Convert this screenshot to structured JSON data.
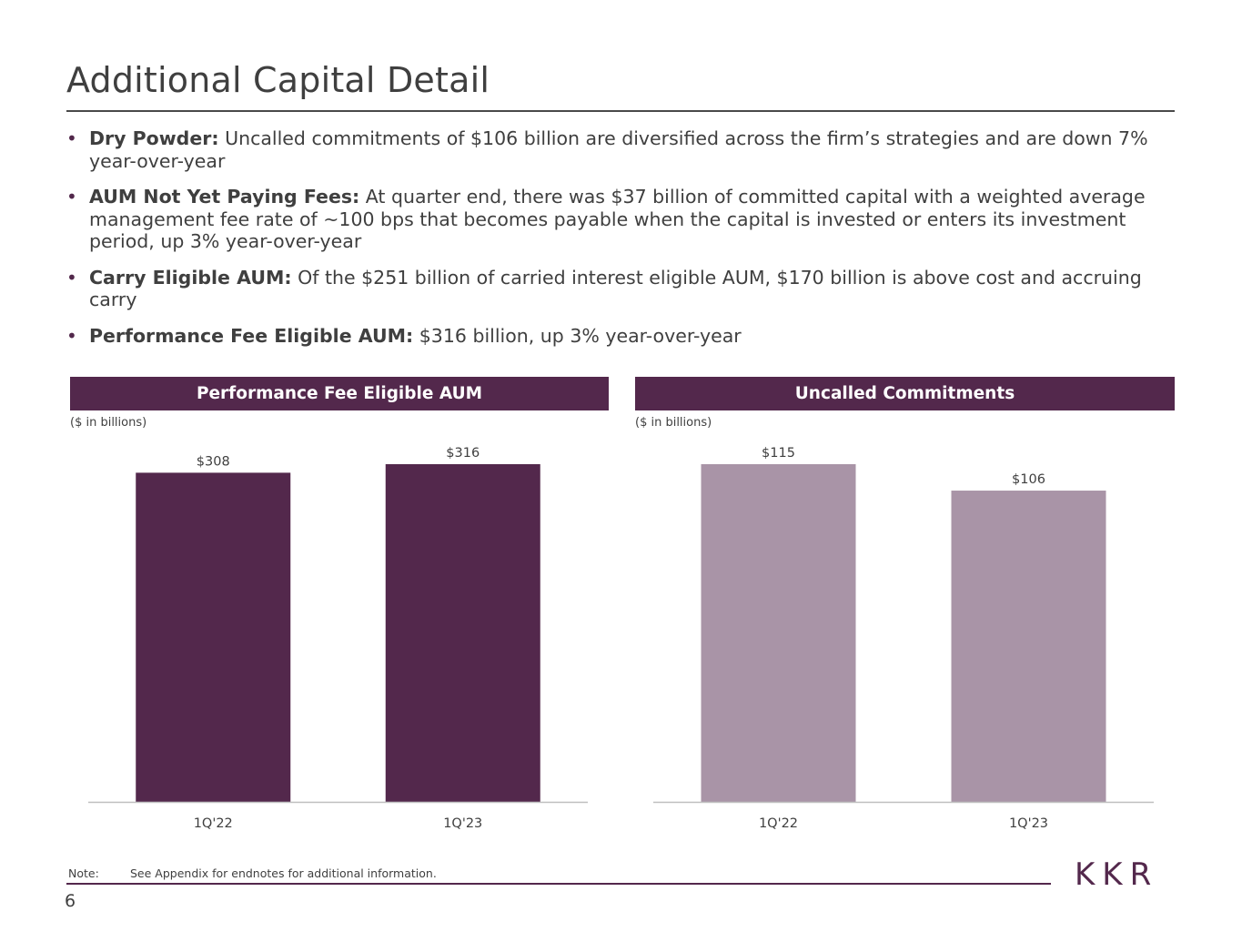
{
  "page": {
    "title": "Additional Capital Detail",
    "page_number": "6",
    "logo_text": "KKR",
    "note_label": "Note:",
    "note_text": "See Appendix for endnotes for additional information."
  },
  "bullets": [
    {
      "label": "Dry Powder:",
      "text": " Uncalled commitments of $106 billion are diversified across the firm’s strategies and are down 7% year-over-year"
    },
    {
      "label": "AUM Not Yet Paying Fees:",
      "text": " At quarter end, there was $37 billion of committed capital with a weighted average management fee rate of ~100 bps that becomes payable when the capital is invested or enters its investment period, up 3% year-over-year"
    },
    {
      "label": "Carry Eligible AUM:",
      "text": " Of the $251 billion of carried interest eligible AUM, $170 billion is above cost and accruing carry"
    },
    {
      "label": "Performance Fee Eligible AUM:",
      "text": " $316 billion, up 3% year-over-year"
    }
  ],
  "colors": {
    "brand": "#53284c",
    "bar_dark": "#53284c",
    "bar_light": "#a994a7",
    "text": "#3f3f3f"
  },
  "chart_data": [
    {
      "type": "bar",
      "title": "Performance Fee Eligible AUM",
      "unit_note": "($ in billions)",
      "categories": [
        "1Q'22",
        "1Q'23"
      ],
      "values": [
        308,
        316
      ],
      "value_labels": [
        "$308",
        "$316"
      ],
      "color": "#53284c",
      "ylim": [
        0,
        316
      ]
    },
    {
      "type": "bar",
      "title": "Uncalled Commitments",
      "unit_note": "($ in billions)",
      "categories": [
        "1Q'22",
        "1Q'23"
      ],
      "values": [
        115,
        106
      ],
      "value_labels": [
        "$115",
        "$106"
      ],
      "color": "#a994a7",
      "ylim": [
        0,
        115
      ]
    }
  ]
}
